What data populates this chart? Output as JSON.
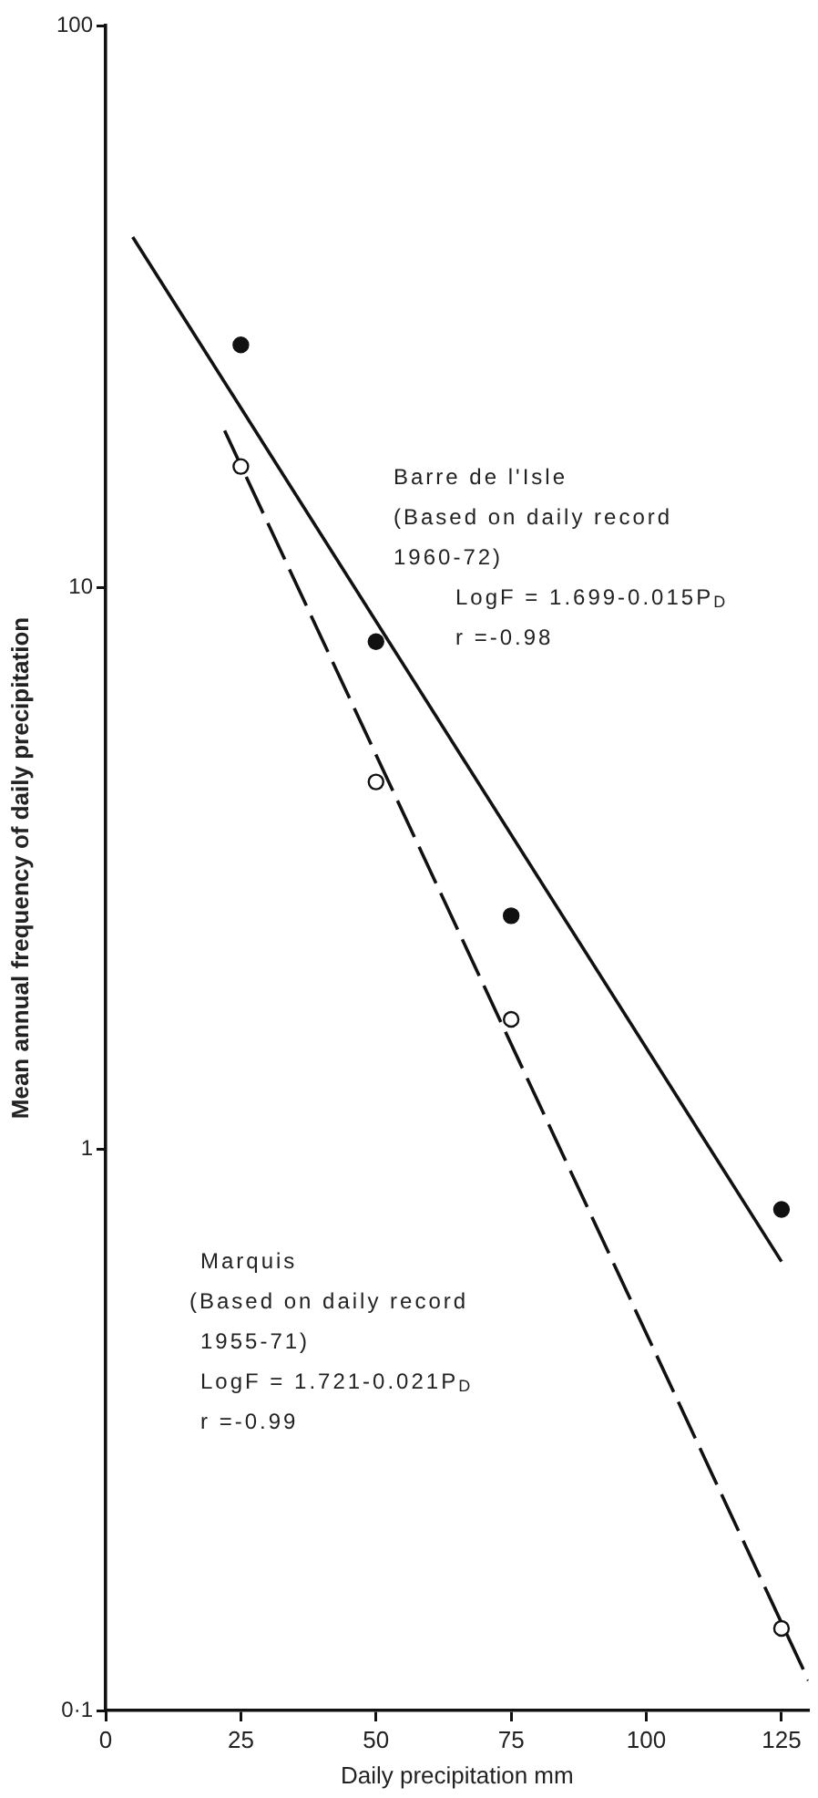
{
  "chart_data": {
    "type": "scatter",
    "xlabel": "Daily precipitation mm",
    "ylabel": "Mean annual frequency of daily precipitation",
    "log": "y",
    "grid": false,
    "legend": false,
    "xlim": [
      0,
      130
    ],
    "xticks": [
      0,
      25,
      50,
      75,
      100,
      125
    ],
    "ylim": [
      0.1,
      100
    ],
    "yticks": [
      {
        "value": 0.1,
        "label": "0·1"
      },
      1,
      10,
      100
    ],
    "series": [
      {
        "marker": "circle",
        "color": "#111111",
        "x": [
          25,
          50,
          75,
          125
        ],
        "values": [
          27,
          8.0,
          2.6,
          0.78
        ]
      },
      {
        "type": "line",
        "marker": "none",
        "line_style": "solid",
        "color": "#111111",
        "x": [
          5,
          125
        ],
        "values": [
          42,
          0.63
        ]
      },
      {
        "marker": "circle",
        "color": "#ffffff",
        "x": [
          25,
          50,
          75,
          125
        ],
        "values": [
          16.4,
          4.5,
          1.7,
          0.14
        ]
      },
      {
        "type": "line",
        "marker": "none",
        "line_style": "dashed",
        "color": "#111111",
        "x": [
          22,
          130
        ],
        "values": [
          19,
          0.113
        ]
      }
    ],
    "annotations": [
      "Barre de l'Isle",
      "(Based on daily record",
      "1960-72)",
      "LogF = 1.699-0.015P$_{D}$",
      "r =-0.98",
      "Marquis",
      "(Based on daily record",
      "1955-71)",
      "LogF = 1.721-0.021P$_{D}$",
      "r =-0.99"
    ]
  }
}
